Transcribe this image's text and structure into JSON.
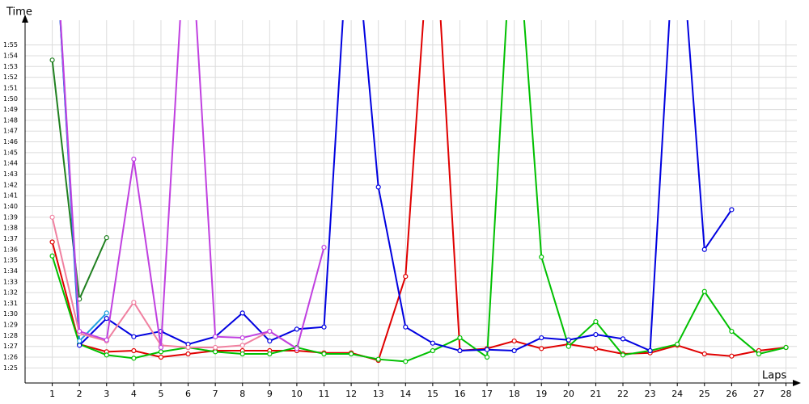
{
  "chart_data": {
    "type": "line",
    "ylabel": "Time",
    "xlabel": "Laps",
    "x": [
      1,
      2,
      3,
      4,
      5,
      6,
      7,
      8,
      9,
      10,
      11,
      12,
      13,
      14,
      15,
      16,
      17,
      18,
      19,
      20,
      21,
      22,
      23,
      24,
      25,
      26,
      27,
      28
    ],
    "xlim": [
      0,
      28.4
    ],
    "xticks": [
      1,
      2,
      3,
      4,
      5,
      6,
      7,
      8,
      9,
      10,
      11,
      12,
      13,
      14,
      15,
      16,
      17,
      18,
      19,
      20,
      21,
      22,
      23,
      24,
      25,
      26,
      27,
      28
    ],
    "ylim": [
      83.6,
      117.3
    ],
    "yticks": [
      {
        "value": 85,
        "label": "1:25"
      },
      {
        "value": 86,
        "label": "1:26"
      },
      {
        "value": 87,
        "label": "1:27"
      },
      {
        "value": 88,
        "label": "1:28"
      },
      {
        "value": 89,
        "label": "1:29"
      },
      {
        "value": 90,
        "label": "1:30"
      },
      {
        "value": 91,
        "label": "1:31"
      },
      {
        "value": 92,
        "label": "1:32"
      },
      {
        "value": 93,
        "label": "1:33"
      },
      {
        "value": 94,
        "label": "1:34"
      },
      {
        "value": 95,
        "label": "1:35"
      },
      {
        "value": 96,
        "label": "1:36"
      },
      {
        "value": 97,
        "label": "1:37"
      },
      {
        "value": 98,
        "label": "1:38"
      },
      {
        "value": 99,
        "label": "1:39"
      },
      {
        "value": 100,
        "label": "1:40"
      },
      {
        "value": 101,
        "label": "1:41"
      },
      {
        "value": 102,
        "label": "1:42"
      },
      {
        "value": 103,
        "label": "1:43"
      },
      {
        "value": 104,
        "label": "1:44"
      },
      {
        "value": 105,
        "label": "1:45"
      },
      {
        "value": 106,
        "label": "1:46"
      },
      {
        "value": 107,
        "label": "1:47"
      },
      {
        "value": 108,
        "label": "1:48"
      },
      {
        "value": 109,
        "label": "1:49"
      },
      {
        "value": 110,
        "label": "1:50"
      },
      {
        "value": 111,
        "label": "1:51"
      },
      {
        "value": 112,
        "label": "1:52"
      },
      {
        "value": 113,
        "label": "1:53"
      },
      {
        "value": 114,
        "label": "1:54"
      },
      {
        "value": 115,
        "label": "1:55"
      }
    ],
    "grid": true,
    "series": [
      {
        "color": "#e00000",
        "values": [
          96.7,
          87.2,
          86.5,
          86.6,
          86.0,
          86.3,
          86.6,
          86.6,
          86.6,
          86.6,
          86.4,
          86.4,
          85.7,
          93.5,
          130,
          86.6,
          86.8,
          87.5,
          86.8,
          87.2,
          86.8,
          86.3,
          86.4,
          87.1,
          86.3,
          86.1,
          86.6,
          86.9
        ]
      },
      {
        "color": "#00c000",
        "values": [
          95.4,
          87.2,
          86.2,
          85.9,
          86.5,
          86.9,
          86.5,
          86.3,
          86.3,
          86.9,
          86.3,
          86.3,
          85.8,
          85.6,
          86.6,
          87.8,
          86.0,
          130,
          95.3,
          87.0,
          89.3,
          86.2,
          86.6,
          87.2,
          92.1,
          88.4,
          86.3,
          86.9
        ]
      },
      {
        "color": "#208020",
        "values": [
          113.6,
          91.4,
          97.1,
          null,
          null,
          null,
          null,
          null,
          null,
          null,
          null,
          null,
          null,
          null,
          null,
          null,
          null,
          null,
          null,
          null,
          null,
          null,
          null,
          null,
          null,
          null,
          null,
          null
        ]
      },
      {
        "color": "#0000e0",
        "values": [
          130,
          87.1,
          89.6,
          87.9,
          88.4,
          87.2,
          87.9,
          90.1,
          87.5,
          88.6,
          88.8,
          130,
          101.8,
          88.8,
          87.3,
          86.6,
          86.7,
          86.6,
          87.8,
          87.6,
          88.1,
          87.7,
          86.6,
          130,
          96.0,
          99.7,
          null,
          null
        ]
      },
      {
        "color": "#20a0e0",
        "values": [
          130,
          87.5,
          90.1,
          null,
          null,
          null,
          null,
          null,
          null,
          null,
          null,
          null,
          null,
          null,
          null,
          null,
          null,
          null,
          null,
          null,
          null,
          null,
          null,
          null,
          null,
          null,
          null,
          null
        ]
      },
      {
        "color": "#f080a0",
        "values": [
          99.0,
          88.2,
          87.5,
          91.1,
          87.1,
          86.9,
          86.9,
          87.1,
          88.4,
          86.8,
          null,
          null,
          null,
          null,
          null,
          null,
          null,
          null,
          null,
          null,
          null,
          null,
          null,
          null,
          null,
          null,
          null,
          null
        ]
      },
      {
        "color": "#c040e0",
        "values": [
          130,
          88.4,
          87.6,
          104.4,
          86.9,
          130,
          87.9,
          87.8,
          88.4,
          86.8,
          96.2,
          null,
          null,
          null,
          null,
          null,
          null,
          null,
          null,
          null,
          null,
          null,
          null,
          null,
          null,
          null,
          null,
          null
        ]
      }
    ]
  }
}
